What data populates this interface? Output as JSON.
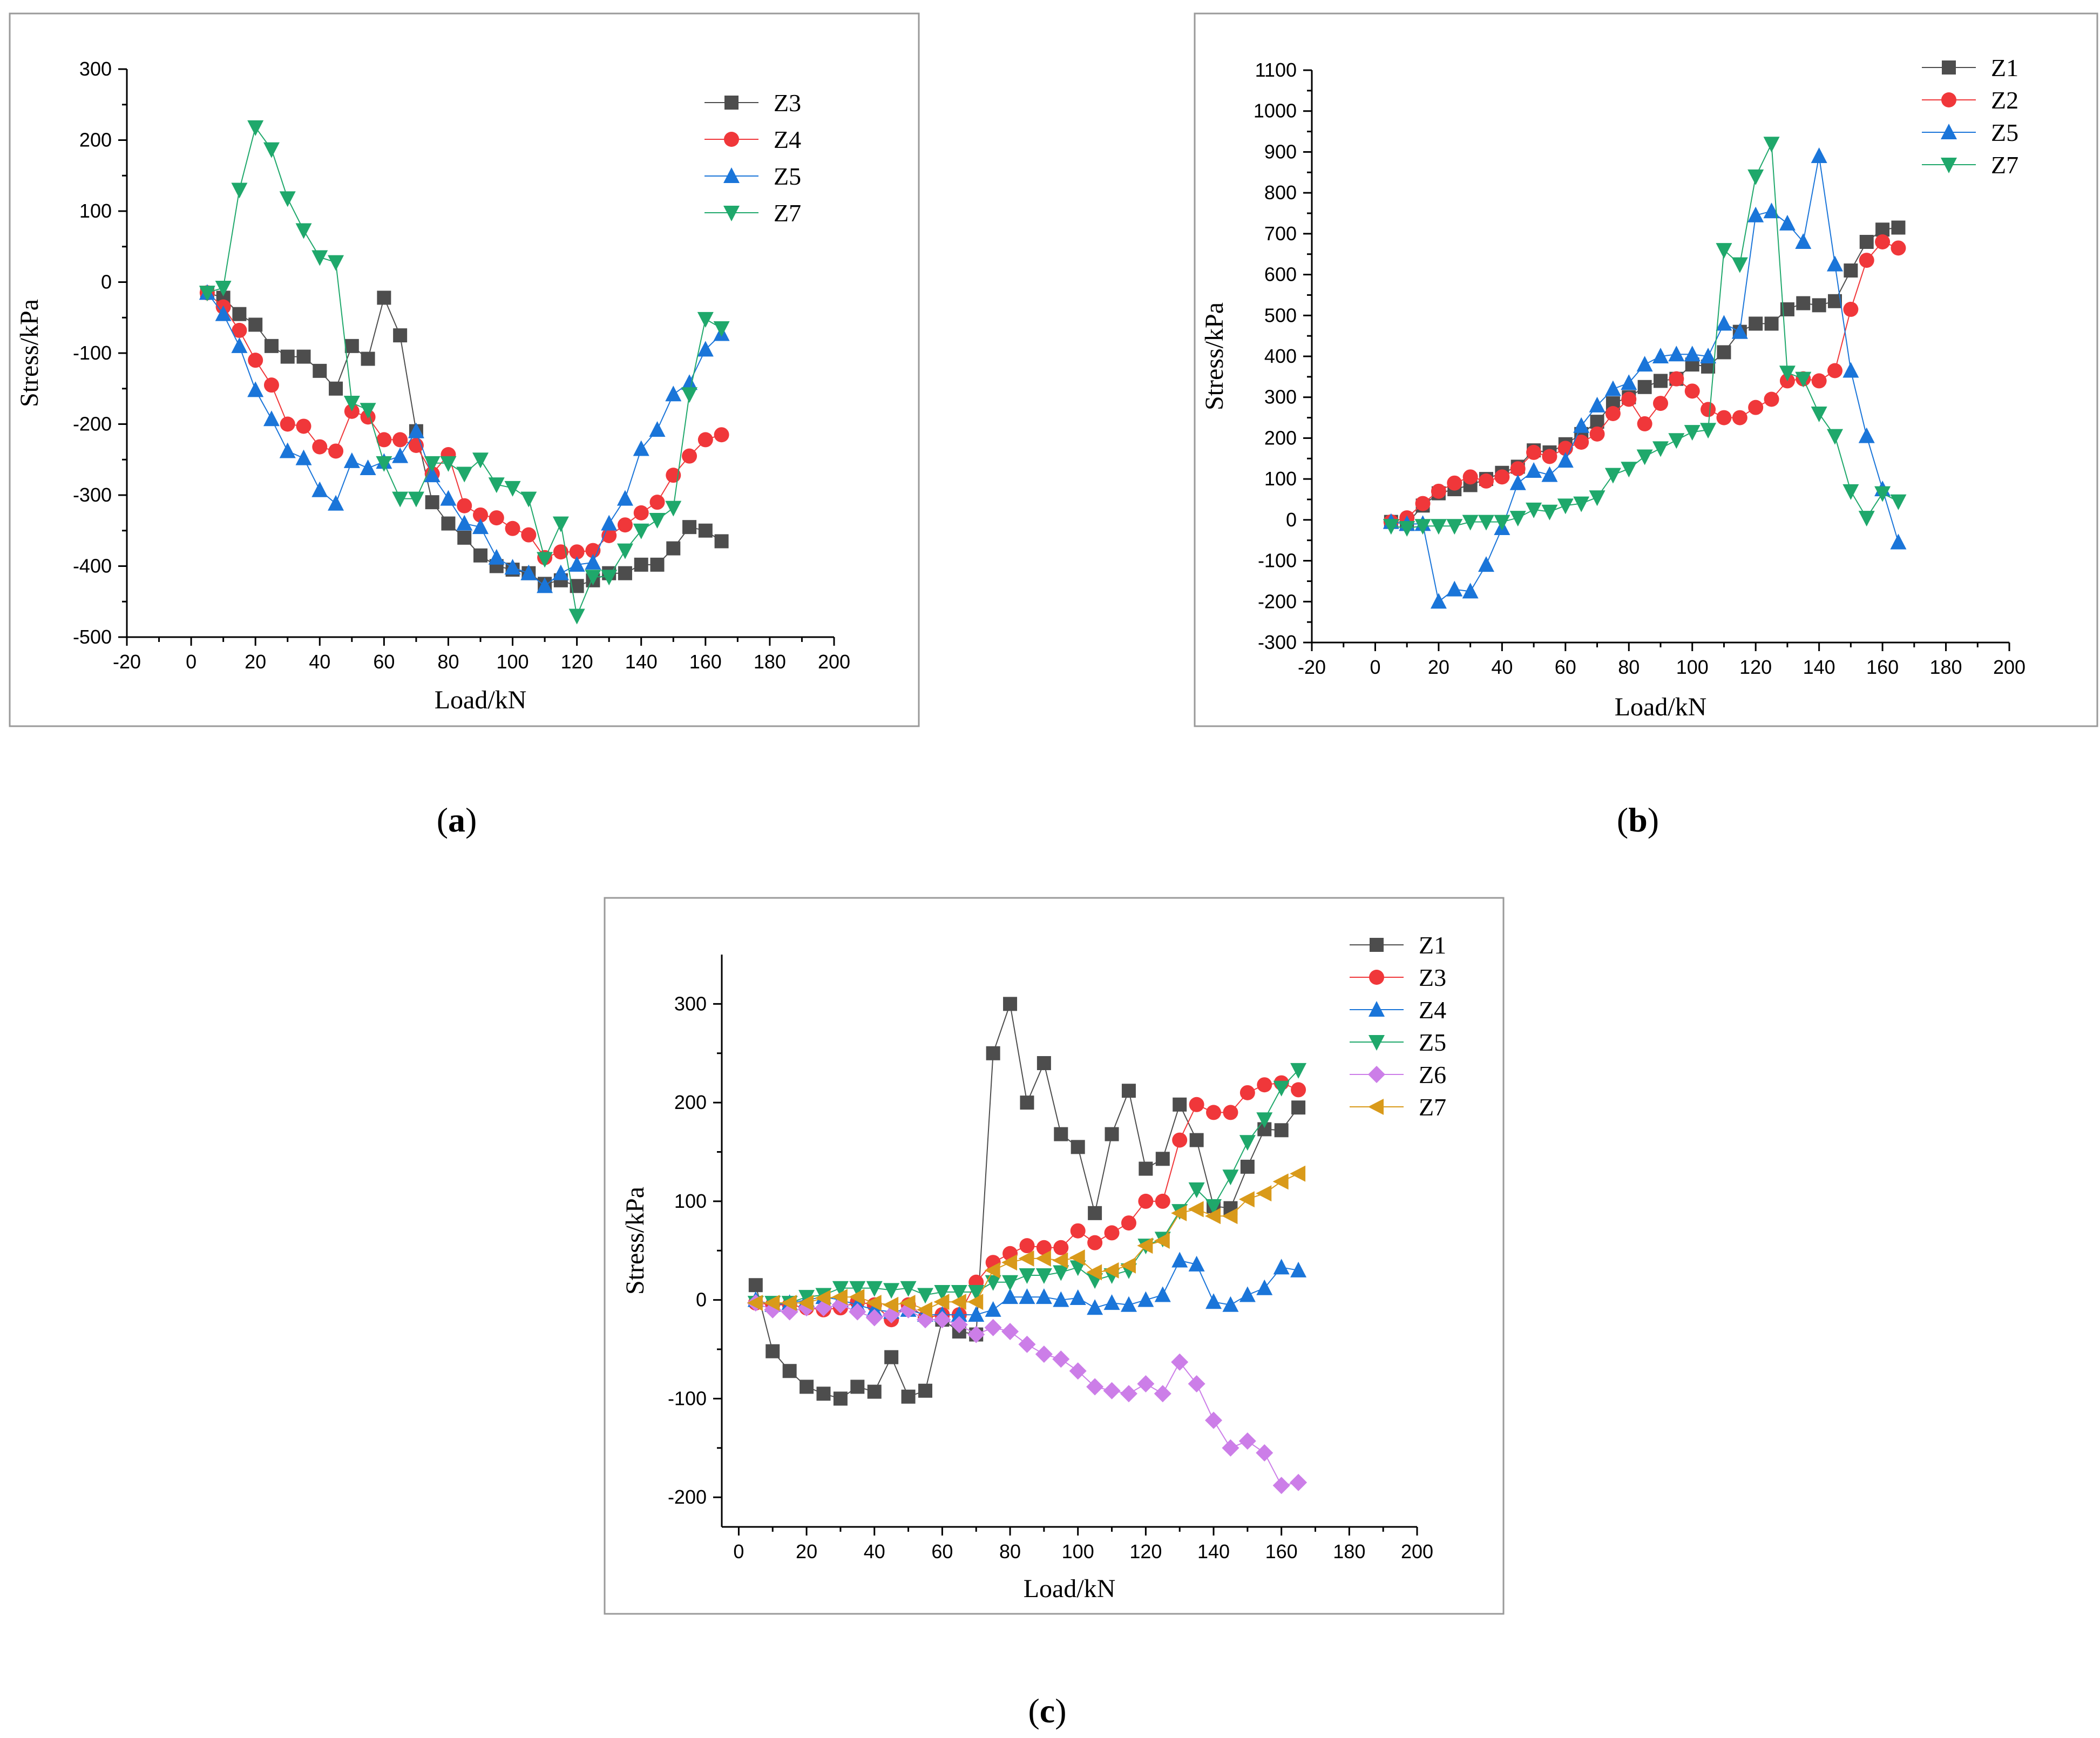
{
  "captions": [
    "a",
    "b",
    "c"
  ],
  "chart_data": [
    {
      "type": "line",
      "xlabel": "Load/kN",
      "ylabel": "Stress/kPa",
      "xlim": [
        -20,
        200
      ],
      "ylim": [
        -500,
        300
      ],
      "xticks": [
        -20,
        0,
        20,
        40,
        60,
        80,
        100,
        120,
        140,
        160,
        180,
        200
      ],
      "yticks": [
        -500,
        -400,
        -300,
        -200,
        -100,
        0,
        100,
        200,
        300
      ],
      "tick_labels_x": [
        "-20",
        "0",
        "20",
        "40",
        "60",
        "80",
        "100",
        "120",
        "140",
        "160",
        "180",
        "200"
      ],
      "tick_labels_y": [
        "-500",
        "-400",
        "-300",
        "-200",
        "-100",
        "0",
        "100",
        "200",
        "300"
      ],
      "legend_position": "top-right",
      "x": [
        5,
        10,
        15,
        20,
        25,
        30,
        35,
        40,
        45,
        50,
        55,
        60,
        65,
        70,
        75,
        80,
        85,
        90,
        95,
        100,
        105,
        110,
        115,
        120,
        125,
        130,
        135,
        140,
        145,
        150,
        155,
        160,
        165
      ],
      "series": [
        {
          "name": "Z3",
          "color": "#4d4d4d",
          "marker": "square",
          "values": [
            -15,
            -22,
            -45,
            -60,
            -90,
            -105,
            -105,
            -125,
            -150,
            -90,
            -108,
            -22,
            -75,
            -210,
            -310,
            -340,
            -360,
            -385,
            -400,
            -405,
            -410,
            -425,
            -420,
            -428,
            -420,
            -410,
            -410,
            -398,
            -398,
            -375,
            -345,
            -350,
            -365
          ]
        },
        {
          "name": "Z4",
          "color": "#f0373a",
          "marker": "circle",
          "values": [
            -15,
            -35,
            -68,
            -110,
            -145,
            -200,
            -203,
            -232,
            -238,
            -182,
            -190,
            -222,
            -222,
            -230,
            -270,
            -243,
            -315,
            -328,
            -332,
            -347,
            -356,
            -388,
            -380,
            -380,
            -378,
            -357,
            -342,
            -325,
            -310,
            -272,
            -245,
            -222,
            -215
          ]
        },
        {
          "name": "Z5",
          "color": "#1a75d9",
          "marker": "triangle-up",
          "values": [
            -15,
            -45,
            -90,
            -152,
            -193,
            -238,
            -248,
            -293,
            -312,
            -252,
            -262,
            -253,
            -245,
            -210,
            -272,
            -305,
            -340,
            -345,
            -388,
            -402,
            -410,
            -428,
            -410,
            -398,
            -395,
            -340,
            -305,
            -235,
            -208,
            -158,
            -142,
            -95,
            -73
          ]
        },
        {
          "name": "Z7",
          "color": "#1fa86b",
          "marker": "triangle-down",
          "values": [
            -15,
            -8,
            130,
            218,
            187,
            118,
            73,
            35,
            28,
            -170,
            -180,
            -255,
            -305,
            -305,
            -255,
            -255,
            -270,
            -250,
            -285,
            -290,
            -305,
            -390,
            -340,
            -470,
            -415,
            -415,
            -378,
            -350,
            -335,
            -318,
            -158,
            -52,
            -65
          ]
        }
      ]
    },
    {
      "type": "line",
      "xlabel": "Load/kN",
      "ylabel": "Stress/kPa",
      "xlim": [
        -20,
        200
      ],
      "ylim": [
        -300,
        1100
      ],
      "xticks": [
        -20,
        0,
        20,
        40,
        60,
        80,
        100,
        120,
        140,
        160,
        180,
        200
      ],
      "yticks": [
        -300,
        -200,
        -100,
        0,
        100,
        200,
        300,
        400,
        500,
        600,
        700,
        800,
        900,
        1000,
        1100
      ],
      "tick_labels_x": [
        "-20",
        "0",
        "20",
        "40",
        "60",
        "80",
        "100",
        "120",
        "140",
        "160",
        "180",
        "200"
      ],
      "tick_labels_y": [
        "-300",
        "-200",
        "-100",
        "0",
        "100",
        "200",
        "300",
        "400",
        "500",
        "600",
        "700",
        "800",
        "900",
        "1000",
        "1100"
      ],
      "legend_position": "top-right",
      "x": [
        5,
        10,
        15,
        20,
        25,
        30,
        35,
        40,
        45,
        50,
        55,
        60,
        65,
        70,
        75,
        80,
        85,
        90,
        95,
        100,
        105,
        110,
        115,
        120,
        125,
        130,
        135,
        140,
        145,
        150,
        155,
        160,
        165
      ],
      "series": [
        {
          "name": "Z1",
          "color": "#4d4d4d",
          "marker": "square",
          "values": [
            -5,
            -10,
            35,
            65,
            75,
            85,
            100,
            115,
            130,
            170,
            165,
            185,
            210,
            240,
            285,
            300,
            325,
            340,
            345,
            380,
            375,
            410,
            460,
            480,
            480,
            515,
            530,
            525,
            535,
            610,
            680,
            710,
            715
          ]
        },
        {
          "name": "Z2",
          "color": "#f0373a",
          "marker": "circle",
          "values": [
            -5,
            5,
            40,
            70,
            90,
            105,
            95,
            105,
            125,
            165,
            155,
            175,
            190,
            210,
            260,
            295,
            235,
            285,
            345,
            315,
            270,
            250,
            250,
            275,
            295,
            340,
            345,
            340,
            365,
            515,
            635,
            680,
            665
          ]
        },
        {
          "name": "Z5",
          "color": "#1a75d9",
          "marker": "triangle-up",
          "values": [
            -5,
            -10,
            -10,
            -200,
            -170,
            -175,
            -110,
            -20,
            90,
            120,
            110,
            145,
            230,
            280,
            320,
            335,
            380,
            400,
            405,
            405,
            400,
            480,
            460,
            745,
            755,
            725,
            680,
            890,
            625,
            365,
            205,
            75,
            -55
          ]
        },
        {
          "name": "Z7",
          "color": "#1fa86b",
          "marker": "triangle-down",
          "values": [
            -15,
            -20,
            -15,
            -15,
            -15,
            -5,
            -5,
            -5,
            5,
            25,
            20,
            35,
            40,
            55,
            110,
            125,
            155,
            175,
            195,
            215,
            220,
            660,
            625,
            840,
            920,
            360,
            345,
            260,
            205,
            70,
            5,
            65,
            45
          ]
        }
      ]
    },
    {
      "type": "line",
      "xlabel": "Load/kN",
      "ylabel": "Stress/kPa",
      "xlim": [
        -5,
        200
      ],
      "ylim": [
        -230,
        350
      ],
      "xticks": [
        0,
        20,
        40,
        60,
        80,
        100,
        120,
        140,
        160,
        180,
        200
      ],
      "yticks": [
        -200,
        -100,
        0,
        100,
        200,
        300
      ],
      "tick_labels_x": [
        "0",
        "20",
        "40",
        "60",
        "80",
        "100",
        "120",
        "140",
        "160",
        "180",
        "200"
      ],
      "tick_labels_y": [
        "-200",
        "-100",
        "0",
        "100",
        "200",
        "300"
      ],
      "legend_position": "top-right",
      "x": [
        5,
        10,
        15,
        20,
        25,
        30,
        35,
        40,
        45,
        50,
        55,
        60,
        65,
        70,
        75,
        80,
        85,
        90,
        95,
        100,
        105,
        110,
        115,
        120,
        125,
        130,
        135,
        140,
        145,
        150,
        155,
        160,
        165
      ],
      "series": [
        {
          "name": "Z1",
          "color": "#4d4d4d",
          "marker": "square",
          "values": [
            15,
            -52,
            -72,
            -88,
            -95,
            -100,
            -88,
            -93,
            -58,
            -98,
            -92,
            -20,
            -32,
            -35,
            250,
            300,
            200,
            240,
            168,
            155,
            88,
            168,
            212,
            133,
            143,
            198,
            162,
            95,
            93,
            135,
            173,
            172,
            195
          ]
        },
        {
          "name": "Z3",
          "color": "#f0373a",
          "marker": "circle",
          "values": [
            -3,
            -5,
            -5,
            -8,
            -10,
            -8,
            -2,
            -5,
            -20,
            -5,
            -18,
            -15,
            -15,
            18,
            38,
            47,
            55,
            53,
            53,
            70,
            58,
            68,
            78,
            100,
            100,
            162,
            198,
            190,
            190,
            210,
            218,
            220,
            213
          ]
        },
        {
          "name": "Z4",
          "color": "#1a75d9",
          "marker": "triangle-up",
          "values": [
            0,
            -5,
            -3,
            0,
            3,
            0,
            -5,
            -10,
            -12,
            -10,
            -15,
            -15,
            -15,
            -15,
            -10,
            3,
            3,
            3,
            0,
            2,
            -8,
            -3,
            -5,
            0,
            5,
            40,
            36,
            -2,
            -5,
            5,
            12,
            33,
            30
          ]
        },
        {
          "name": "Z5",
          "color": "#1fa86b",
          "marker": "triangle-down",
          "values": [
            -3,
            -3,
            -3,
            3,
            5,
            12,
            12,
            12,
            10,
            12,
            5,
            8,
            8,
            8,
            18,
            18,
            25,
            25,
            28,
            33,
            20,
            25,
            30,
            55,
            62,
            90,
            112,
            95,
            125,
            160,
            183,
            215,
            233
          ]
        },
        {
          "name": "Z6",
          "color": "#cc7ee8",
          "marker": "diamond",
          "values": [
            -3,
            -10,
            -12,
            -8,
            -8,
            -5,
            -12,
            -18,
            -15,
            -10,
            -20,
            -20,
            -25,
            -35,
            -28,
            -32,
            -45,
            -55,
            -60,
            -72,
            -88,
            -92,
            -95,
            -85,
            -95,
            -63,
            -85,
            -122,
            -150,
            -143,
            -155,
            -188,
            -185
          ]
        },
        {
          "name": "Z7",
          "color": "#d99a1a",
          "marker": "triangle-left",
          "values": [
            -3,
            -3,
            -3,
            -3,
            2,
            3,
            3,
            -3,
            -5,
            -3,
            -10,
            -2,
            -2,
            -2,
            30,
            38,
            42,
            42,
            40,
            43,
            28,
            30,
            35,
            55,
            60,
            88,
            92,
            85,
            85,
            102,
            108,
            120,
            128
          ]
        }
      ]
    }
  ]
}
